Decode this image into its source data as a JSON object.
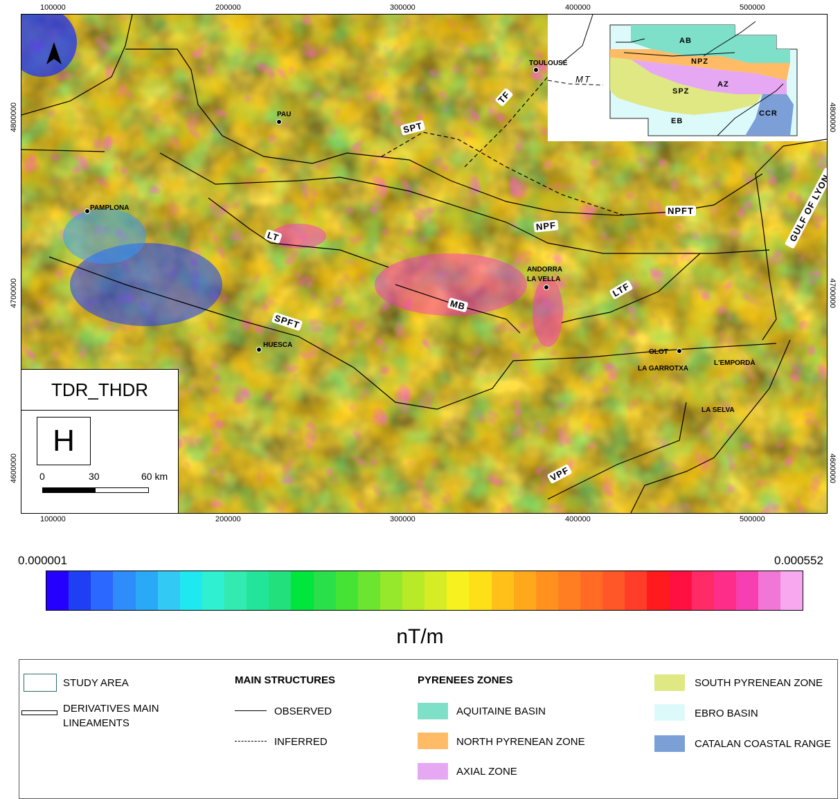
{
  "map": {
    "x_ticks": [
      "100000",
      "200000",
      "300000",
      "400000",
      "500000"
    ],
    "y_ticks": [
      "4800000",
      "4700000",
      "4600000"
    ],
    "cities": {
      "pau": "PAU",
      "toulouse": "TOULOUSE",
      "pamplona": "PAMPLONA",
      "andorra": "ANDORRA",
      "la_vella": "LA VELLA",
      "huesca": "HUESCA",
      "olot": "OLOT",
      "la_garrotxa": "LA GARROTXA",
      "emporda": "L'EMPORDÀ",
      "la_selva": "LA SELVA"
    },
    "faults": {
      "spt": "SPT",
      "tf": "TF",
      "mt": "MT",
      "npft": "NPFT",
      "npf": "NPF",
      "lt": "LT",
      "mb": "MB",
      "ltf": "LTF",
      "spft": "SPFT",
      "vpf": "VPF",
      "gulf": "GULF OF LYON"
    },
    "inset": {
      "ab": "AB",
      "npz": "NPZ",
      "spz": "SPZ",
      "az": "AZ",
      "eb": "EB",
      "ccr": "CCR"
    },
    "panel_title": "TDR_THDR",
    "panel_letter": "H",
    "scale": {
      "s0": "0",
      "s1": "30",
      "s2": "60 km"
    }
  },
  "colorbar": {
    "min": "0.000001",
    "max": "0.000552",
    "unit": "nT/m",
    "colors": [
      "#2600ff",
      "#1f3ff5",
      "#2a68ff",
      "#2e8cfb",
      "#2aa9f7",
      "#33c9f5",
      "#1fe8f0",
      "#2ff0d0",
      "#33eab0",
      "#22e59a",
      "#22e07b",
      "#00e63d",
      "#29e04a",
      "#45e334",
      "#6be52f",
      "#95e82b",
      "#b8ea28",
      "#d6ec24",
      "#f7f21f",
      "#ffe018",
      "#ffc119",
      "#ffa81c",
      "#ff921e",
      "#ff7e22",
      "#ff6b24",
      "#ff5727",
      "#ff3d28",
      "#ff1a1e",
      "#ff1040",
      "#ff2a66",
      "#ff2d8a",
      "#f73fb1",
      "#f276d6",
      "#f7a8ef"
    ]
  },
  "legend": {
    "study_area": "STUDY AREA",
    "deriv_1": "DERIVATIVES MAIN",
    "deriv_2": "LINEAMENTS",
    "main_structures": "MAIN STRUCTURES",
    "observed": "OBSERVED",
    "inferred": "INFERRED",
    "pyrenees_zones": "PYRENEES ZONES",
    "aquitaine": "AQUITAINE BASIN",
    "north_pyrenean": "NORTH PYRENEAN ZONE",
    "axial": "AXIAL ZONE",
    "south_pyrenean": "SOUTH PYRENEAN ZONE",
    "ebro": "EBRO BASIN",
    "catalan": "CATALAN COASTAL RANGE",
    "zone_colors": {
      "aquitaine": "#7ee0c9",
      "north_pyrenean": "#ffbb66",
      "axial": "#e6a8f2",
      "south_pyrenean": "#dfe882",
      "ebro": "#ddfafb",
      "catalan": "#7b9fd6"
    }
  }
}
